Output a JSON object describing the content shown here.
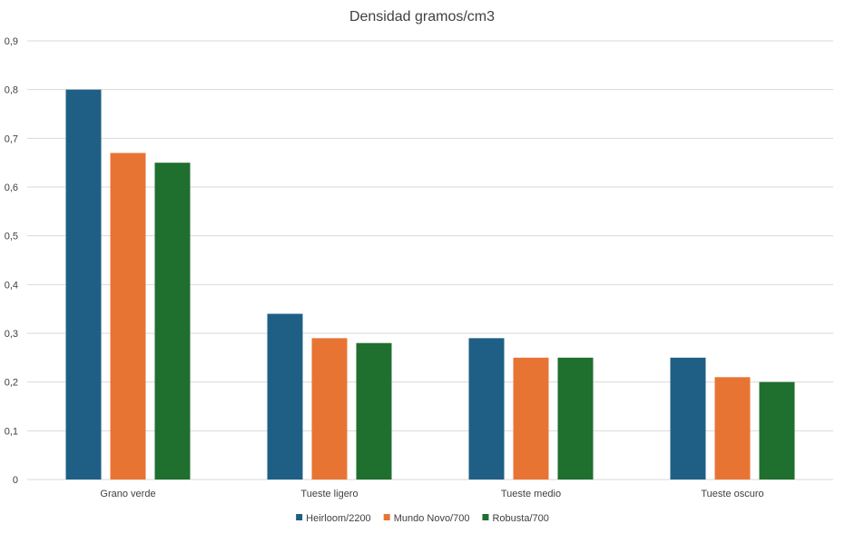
{
  "chart_data": {
    "type": "bar",
    "title": "Densidad gramos/cm3",
    "xlabel": "",
    "ylabel": "",
    "categories": [
      "Grano verde",
      "Tueste ligero",
      "Tueste medio",
      "Tueste oscuro"
    ],
    "series": [
      {
        "name": "Heirloom/2200",
        "color": "#1f5f86",
        "values": [
          0.8,
          0.34,
          0.29,
          0.25
        ]
      },
      {
        "name": "Mundo Novo/700",
        "color": "#e87434",
        "values": [
          0.67,
          0.29,
          0.25,
          0.21
        ]
      },
      {
        "name": "Robusta/700",
        "color": "#1f6f2e",
        "values": [
          0.65,
          0.28,
          0.25,
          0.2
        ]
      }
    ],
    "ylim": [
      0,
      0.9
    ],
    "yticks": [
      0,
      0.1,
      0.2,
      0.3,
      0.4,
      0.5,
      0.6,
      0.7,
      0.8,
      0.9
    ],
    "ytick_labels": [
      "0",
      "0,1",
      "0,2",
      "0,3",
      "0,4",
      "0,5",
      "0,6",
      "0,7",
      "0,8",
      "0,9"
    ],
    "grid": true,
    "legend_position": "bottom"
  }
}
